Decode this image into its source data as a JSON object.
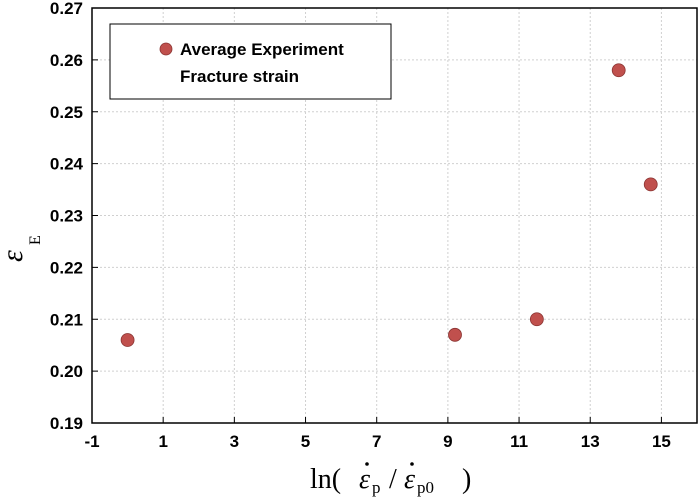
{
  "chart_data": {
    "type": "scatter",
    "title": "",
    "ylabel": "ε",
    "ylabel_sub": "E",
    "xlabel": {
      "prefix": "ln(",
      "num": "ε",
      "num_sub": "p",
      "slash": "/",
      "den": "ε",
      "den_sub": "p0",
      "suffix": ")"
    },
    "xlim": [
      -1,
      16
    ],
    "ylim": [
      0.19,
      0.27
    ],
    "x_ticks": [
      -1,
      1,
      3,
      5,
      7,
      9,
      11,
      13,
      15
    ],
    "x_tick_labels": [
      "-1",
      "1",
      "3",
      "5",
      "7",
      "9",
      "11",
      "13",
      "15"
    ],
    "y_ticks": [
      0.19,
      0.2,
      0.21,
      0.22,
      0.23,
      0.24,
      0.25,
      0.26,
      0.27
    ],
    "y_tick_labels": [
      "0.19",
      "0.20",
      "0.21",
      "0.22",
      "0.23",
      "0.24",
      "0.25",
      "0.26",
      "0.27"
    ],
    "grid": true,
    "legend_position": "top-left",
    "series": [
      {
        "name": "Average Experiment",
        "name_line2": "Fracture strain",
        "color": "#c0504d",
        "points": [
          {
            "x": 0.0,
            "y": 0.206
          },
          {
            "x": 9.2,
            "y": 0.207
          },
          {
            "x": 11.5,
            "y": 0.21
          },
          {
            "x": 13.8,
            "y": 0.258
          },
          {
            "x": 14.7,
            "y": 0.236
          }
        ]
      }
    ]
  }
}
